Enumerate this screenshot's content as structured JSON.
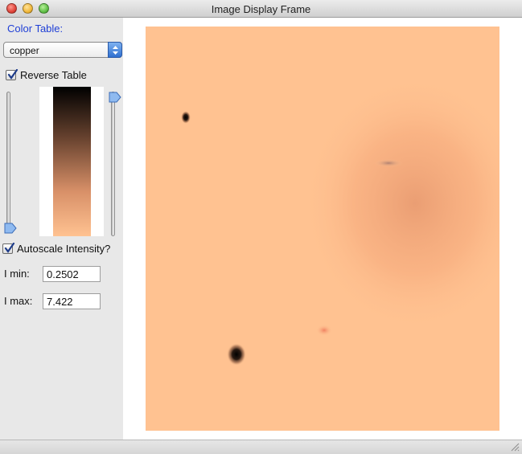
{
  "window": {
    "title": "Image Display Frame"
  },
  "colors": {
    "accent_label": "#1f3fd6",
    "image_background": "#ffc291",
    "colorbar_top": "#000000",
    "colorbar_bottom": "#ffc291"
  },
  "sidebar": {
    "color_table_label": "Color Table:",
    "color_table_selected": "copper",
    "reverse_table_label": "Reverse Table",
    "reverse_table_checked": true,
    "autoscale_label": "Autoscale Intensity?",
    "autoscale_checked": true,
    "imin_label": "I min:",
    "imin_value": "0.2502",
    "imax_label": "I max:",
    "imax_value": "7.422"
  },
  "sliders": {
    "left_level": 0.0,
    "right_level": 1.0
  },
  "icons": {
    "close": "close-button-icon",
    "minimize": "minimize-button-icon",
    "maximize": "zoom-button-icon",
    "select_arrows": "updown-arrows-icon",
    "checkmark": "checkmark-icon",
    "resize": "resize-grip-icon"
  }
}
